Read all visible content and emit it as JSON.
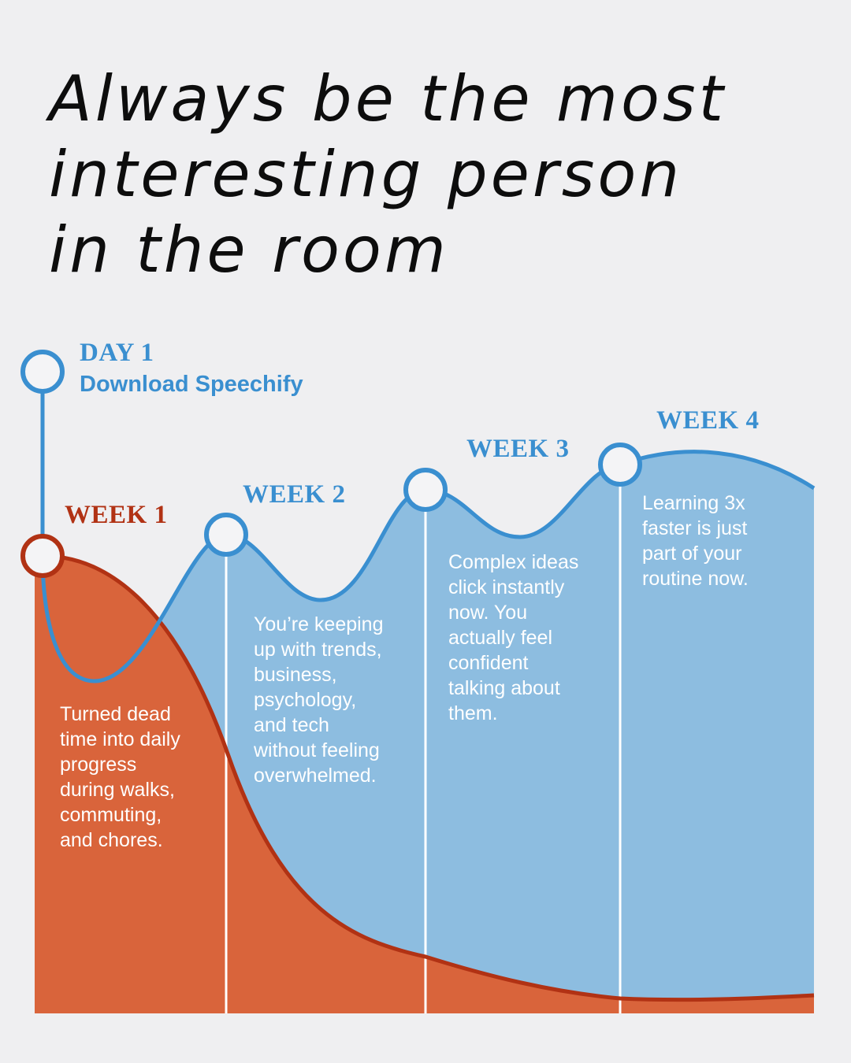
{
  "title_lines": [
    "Always be the most",
    "interesting person",
    "in the room"
  ],
  "day1": {
    "heading": "DAY 1",
    "subtitle": "Download Speechify"
  },
  "weeks": [
    {
      "heading": "WEEK 1",
      "lines": [
        "Turned dead",
        "time into daily",
        "progress",
        "during walks,",
        "commuting,",
        "and chores."
      ]
    },
    {
      "heading": "WEEK 2",
      "lines": [
        "You’re keeping",
        "up with trends,",
        "business,",
        "psychology,",
        "and tech",
        "without feeling",
        "overwhelmed."
      ]
    },
    {
      "heading": "WEEK 3",
      "lines": [
        "Complex ideas",
        "click instantly",
        "now. You",
        "actually feel",
        "confident",
        "talking about",
        "them."
      ]
    },
    {
      "heading": "WEEK 4",
      "lines": [
        "Learning 3x",
        "faster is just",
        "part of your",
        "routine now."
      ]
    }
  ],
  "colors": {
    "background": "#efeff1",
    "blue_line": "#3a8fd0",
    "blue_fill": "#8dbde0",
    "red_line": "#b13214",
    "red_fill": "#d9643b",
    "title_text": "#0d0d0d"
  }
}
